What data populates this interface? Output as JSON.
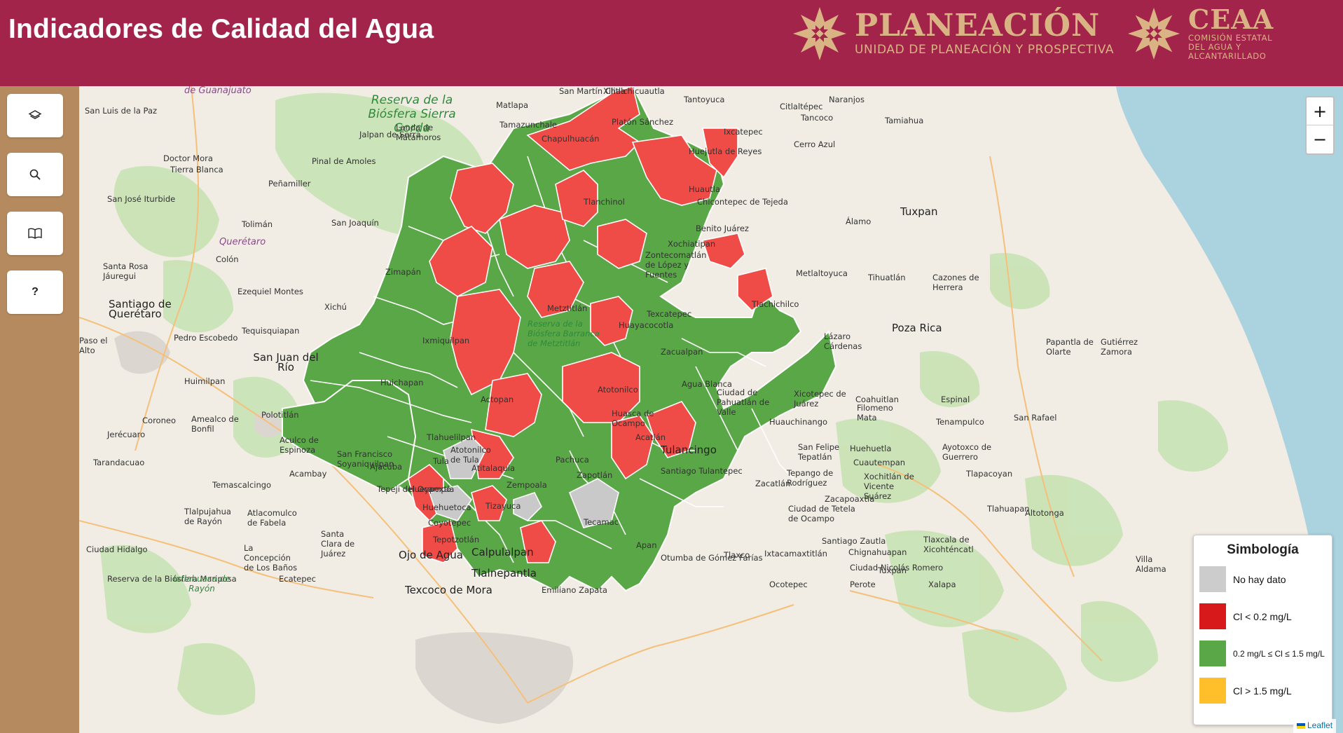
{
  "header": {
    "title": "Indicadores de Calidad del Agua",
    "planeacion_name": "PLANEACIÓN",
    "planeacion_sub": "UNIDAD DE PLANEACIÓN Y PROSPECTIVA",
    "ceaa_name": "CEAA",
    "ceaa_sub1": "COMISIÓN ESTATAL",
    "ceaa_sub2": "DEL AGUA Y",
    "ceaa_sub3": "ALCANTARILLADO",
    "accent_color": "#a2244a",
    "logo_color": "#d9b383"
  },
  "sidebar": {
    "background": "#b48a5e",
    "buttons": [
      {
        "name": "layers",
        "icon": "layers-icon"
      },
      {
        "name": "search",
        "icon": "search-icon"
      },
      {
        "name": "book",
        "icon": "book-icon"
      },
      {
        "name": "help",
        "icon": "question-icon",
        "label": "?"
      }
    ]
  },
  "map": {
    "zoom_in": "+",
    "zoom_out": "−",
    "attribution": "Leaflet",
    "labels": [
      "de Guanajuato",
      "Xilitla",
      "San Martín Chalchicuautla",
      "Tantoyuca",
      "Naranjos",
      "Citlaltépec",
      "Tancoco",
      "Tamiahua",
      "Matlapa",
      "Tamazunchale",
      "San Luis de la Paz",
      "Reserva de la Biósfera Sierra Gorda",
      "Jalpan de Serra",
      "Landa de Matamoros",
      "Platón Sánchez",
      "Ixcatepec",
      "Cerro Azul",
      "Chapulhuacán",
      "Tlanchinol",
      "Huejutla de Reyes",
      "Huautla",
      "Chicontepec de Tejeda",
      "Doctor Mora",
      "Tierra Blanca",
      "Pinal de Amoles",
      "Peñamiller",
      "San José Iturbide",
      "Tolimán",
      "San Joaquín",
      "Benito Juárez",
      "Tuxpan",
      "Álamo",
      "Querétaro",
      "Colón",
      "Xochiatipan",
      "Zontecomatlán de López y Fuentes",
      "Santa Rosa Jáuregui",
      "Zimapán",
      "Metlaltoyuca",
      "Tihuatlán",
      "Cazones de Herrera",
      "Ezequiel Montes",
      "Santiago de Querétaro",
      "Xichú",
      "Tlachichilco",
      "Texcatepec",
      "Poza Rica",
      "Pedro Escobedo",
      "Tequisquiapan",
      "Metztitlán",
      "Huayacocotla",
      "Paso el Alto",
      "Ixmiquilpan",
      "Reserva de la Biósfera Barranca de Metztitlán",
      "Zacualpan",
      "Papantla de Olarte",
      "Gutiérrez Zamora",
      "Huimilpan",
      "San Juan del Río",
      "Huichapan",
      "Agua Blanca",
      "Ciudad de Pahuatlán de Valle",
      "Xicotepec de Juárez",
      "Coahuitlan",
      "Espinal",
      "Lázaro Cárdenas",
      "Polotitlán",
      "Coroneo",
      "Amealco de Bonfil",
      "Actopan",
      "Atotonilco",
      "Huasca de Ocampo",
      "Filomeno Mata",
      "Huauchinango",
      "Tenampulco",
      "San Rafael",
      "Jerécuaro",
      "Aculco de Espinoza",
      "Tlahuelilpan",
      "Acatlán",
      "Tulancingo",
      "Tula",
      "Pachuca",
      "San Felipe Tepatlán",
      "Huehuetla",
      "Cuautempan",
      "Ayotoxco de Guerrero",
      "Tarandacuao",
      "San Francisco Soyaniquilpan",
      "Atitalaquia",
      "Santiago Tulantepec",
      "Tepango de Rodríguez",
      "Xochitlán de Vicente Suárez",
      "Acambay",
      "Ajacuba",
      "Zempoala",
      "Zapotlán",
      "Tlapacoyan",
      "Temascalcingo",
      "Tepeji del Ocampo",
      "Hueypoxtla",
      "Zacatlán",
      "Zacapoaxtla",
      "Atotonilco de Tula",
      "Tlalpujahua de Rayón",
      "Huehuetoca",
      "Atlacomulco de Fabela",
      "Tizayuca",
      "Ciudad de Tetela de Ocampo",
      "Tlaxcala de Xicohténcatl",
      "Tlahuapan",
      "Altotonga",
      "Coyotepec",
      "Tepotzotlán",
      "Tecamac",
      "Ciudad Hidalgo",
      "Santa Clara de Juárez",
      "Apan",
      "Santiago Zautla",
      "Villa Aldama",
      "La Concepción de Los Baños",
      "Otumba de Gómez Farías",
      "Ciudad Nicolás Romero",
      "Ojo de Agua",
      "Calpulalpan",
      "Tlaxco",
      "Ixtacamaxtitlán",
      "Chignahuapan",
      "Tuxpan",
      "Reserva de la Biósfera Mariposa",
      "Ixtlahuaca de Rayón",
      "Ecatepec",
      "Tlalnepantla",
      "Texcoco de Mora",
      "Emiliano Zapata",
      "Ocotepec",
      "Perote",
      "Xalapa"
    ]
  },
  "legend": {
    "title": "Simbología",
    "items": [
      {
        "label": "No hay dato",
        "color": "#cccccc"
      },
      {
        "label": "Cl < 0.2 mg/L",
        "color": "#d7191c"
      },
      {
        "label": "0.2 mg/L  ≤ Cl ≤ 1.5 mg/L",
        "color": "#5aa747"
      },
      {
        "label": "Cl > 1.5 mg/L",
        "color": "#ffbf2b"
      }
    ]
  }
}
